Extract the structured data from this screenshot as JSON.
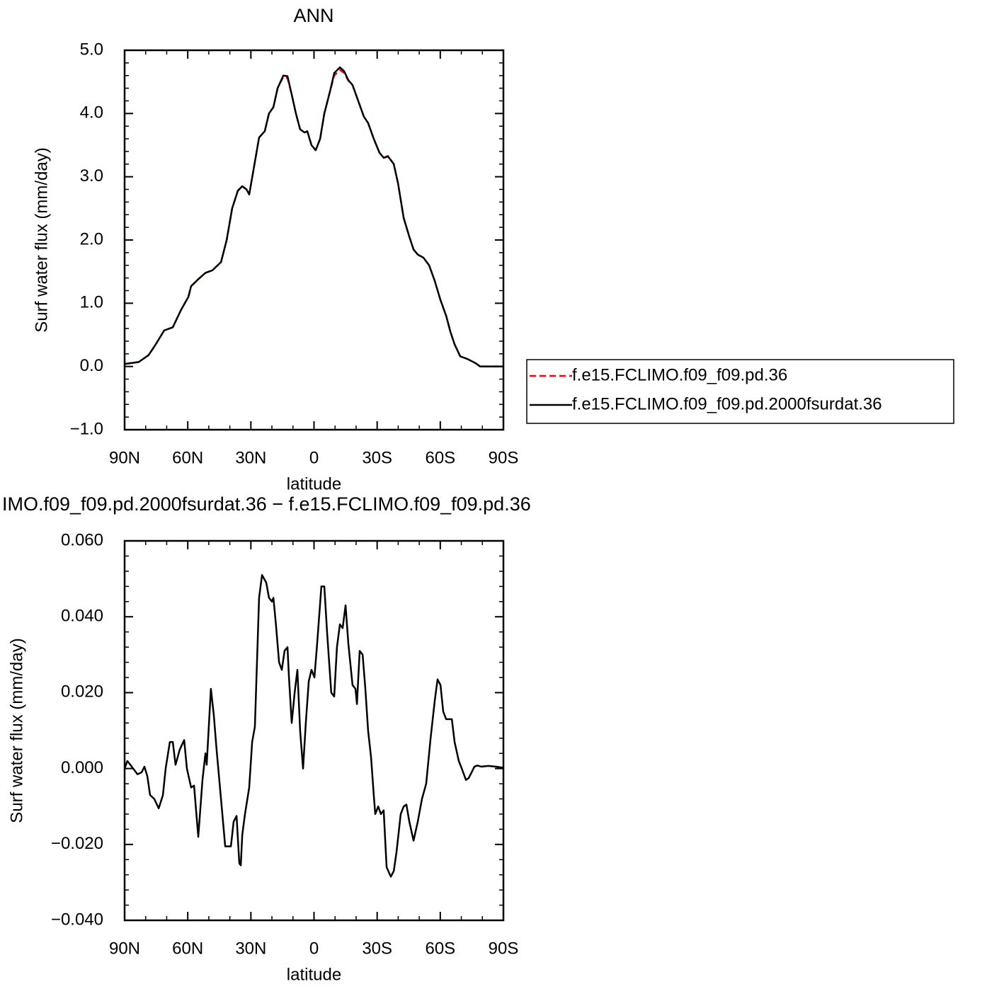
{
  "chart_data": [
    {
      "type": "line",
      "title": "ANN",
      "xlabel": "latitude",
      "ylabel": "Surf water flux (mm/day)",
      "xlim": [
        90,
        -90
      ],
      "xticks": [
        {
          "value": 90,
          "label": "90N"
        },
        {
          "value": 60,
          "label": "60N"
        },
        {
          "value": 30,
          "label": "30N"
        },
        0,
        {
          "value": -30,
          "label": "30S"
        },
        {
          "value": -60,
          "label": "60S"
        },
        {
          "value": -90,
          "label": "90S"
        }
      ],
      "ylim": [
        -1,
        5
      ],
      "yticks": [
        {
          "value": 5,
          "label": "5.0"
        },
        {
          "value": 4,
          "label": "4.0"
        },
        {
          "value": 3,
          "label": "3.0"
        },
        {
          "value": 2,
          "label": "2.0"
        },
        {
          "value": 1,
          "label": "1.0"
        },
        {
          "value": 0,
          "label": "0.0"
        },
        {
          "value": -1,
          "label": "−1.0"
        }
      ],
      "grid": false,
      "legend": "outside right",
      "x": [
        90,
        83.3,
        78.6,
        75.2,
        71.2,
        67.1,
        63.1,
        59.7,
        58.4,
        55.0,
        51.6,
        48.3,
        44.2,
        41.5,
        38.9,
        36.2,
        34.1,
        32.1,
        30.8,
        28.8,
        26.1,
        23.4,
        21.4,
        19.3,
        17.3,
        14.6,
        12.6,
        10.6,
        8.6,
        6.6,
        4.5,
        3.2,
        1.2,
        -0.8,
        -2.9,
        -4.9,
        -7.6,
        -9.6,
        -12.3,
        -14.3,
        -16.3,
        -18.3,
        -21.0,
        -23.7,
        -25.7,
        -28.4,
        -31.1,
        -33.1,
        -35.2,
        -37.9,
        -39.9,
        -42.6,
        -45.3,
        -47.3,
        -49.3,
        -52.0,
        -54.7,
        -57.4,
        -60.1,
        -62.8,
        -64.8,
        -66.8,
        -69.5,
        -72.8,
        -76.9,
        -78.9,
        -82.9,
        -90
      ],
      "series": [
        {
          "name": "f.e15.FCLIMO.f09_f09.pd.36",
          "color": "#ff0000",
          "dash": "dashed",
          "values": [
            0.04,
            0.07,
            0.18,
            0.35,
            0.57,
            0.62,
            0.9,
            1.1,
            1.27,
            1.38,
            1.48,
            1.52,
            1.65,
            2.0,
            2.5,
            2.78,
            2.85,
            2.8,
            2.72,
            3.1,
            3.62,
            3.72,
            4.0,
            4.1,
            4.4,
            4.58,
            4.56,
            4.3,
            4.0,
            3.75,
            3.7,
            3.72,
            3.5,
            3.42,
            3.6,
            4.0,
            4.35,
            4.6,
            4.69,
            4.64,
            4.52,
            4.45,
            4.2,
            3.95,
            3.85,
            3.6,
            3.38,
            3.3,
            3.33,
            3.2,
            2.9,
            2.35,
            2.05,
            1.85,
            1.77,
            1.72,
            1.6,
            1.35,
            1.05,
            0.8,
            0.55,
            0.35,
            0.16,
            0.12,
            0.05,
            0.0,
            0.0,
            0.0
          ]
        },
        {
          "name": "f.e15.FCLIMO.f09_f09.pd.2000fsurdat.36",
          "color": "#000000",
          "dash": "solid",
          "values": [
            0.04,
            0.07,
            0.18,
            0.35,
            0.57,
            0.62,
            0.9,
            1.1,
            1.27,
            1.38,
            1.48,
            1.52,
            1.65,
            2.0,
            2.5,
            2.78,
            2.85,
            2.8,
            2.72,
            3.1,
            3.62,
            3.72,
            4.0,
            4.1,
            4.4,
            4.6,
            4.59,
            4.3,
            4.0,
            3.75,
            3.7,
            3.72,
            3.5,
            3.42,
            3.6,
            4.0,
            4.35,
            4.64,
            4.73,
            4.67,
            4.53,
            4.45,
            4.2,
            3.95,
            3.85,
            3.6,
            3.38,
            3.3,
            3.32,
            3.2,
            2.9,
            2.35,
            2.05,
            1.85,
            1.77,
            1.72,
            1.6,
            1.35,
            1.05,
            0.8,
            0.55,
            0.35,
            0.16,
            0.12,
            0.05,
            0.0,
            0.0,
            0.0
          ]
        }
      ]
    },
    {
      "type": "line",
      "title": "IMO.f09_f09.pd.2000fsurdat.36 − f.e15.FCLIMO.f09_f09.pd.36",
      "xlabel": "latitude",
      "ylabel": "Surf water flux (mm/day)",
      "xlim": [
        90,
        -90
      ],
      "xticks": [
        {
          "value": 90,
          "label": "90N"
        },
        {
          "value": 60,
          "label": "60N"
        },
        {
          "value": 30,
          "label": "30N"
        },
        0,
        {
          "value": -30,
          "label": "30S"
        },
        {
          "value": -60,
          "label": "60S"
        },
        {
          "value": -90,
          "label": "90S"
        }
      ],
      "ylim": [
        -0.04,
        0.06
      ],
      "yticks": [
        {
          "value": 0.06,
          "label": "0.060"
        },
        {
          "value": 0.04,
          "label": "0.040"
        },
        {
          "value": 0.02,
          "label": "0.020"
        },
        {
          "value": 0,
          "label": "0.000"
        },
        {
          "value": -0.02,
          "label": "−0.020"
        },
        {
          "value": -0.04,
          "label": "−0.040"
        }
      ],
      "grid": false,
      "x": [
        90,
        88.7,
        87.3,
        83.9,
        81.9,
        80.6,
        79.2,
        77.9,
        75.9,
        73.8,
        71.8,
        70.5,
        68.5,
        67.1,
        65.8,
        63.8,
        61.7,
        60.4,
        58.4,
        57.0,
        55.0,
        53.0,
        51.6,
        51.0,
        49.0,
        47.6,
        46.3,
        44.2,
        42.2,
        39.5,
        38.2,
        36.8,
        35.5,
        34.8,
        34.1,
        32.8,
        30.8,
        29.4,
        28.1,
        26.1,
        24.7,
        22.7,
        21.4,
        20.0,
        19.3,
        18.1,
        16.6,
        15.3,
        14.0,
        12.6,
        11.9,
        10.6,
        9.2,
        7.9,
        6.6,
        5.2,
        3.9,
        2.5,
        1.2,
        -0.2,
        -1.5,
        -3.5,
        -4.9,
        -6.2,
        -8.2,
        -9.6,
        -10.9,
        -12.3,
        -13.6,
        -15.0,
        -16.3,
        -18.3,
        -19.7,
        -20.4,
        -21.7,
        -23.1,
        -24.4,
        -25.7,
        -27.1,
        -28.4,
        -29.1,
        -30.5,
        -31.8,
        -33.1,
        -34.5,
        -36.5,
        -37.9,
        -39.2,
        -41.2,
        -42.6,
        -43.9,
        -45.3,
        -47.3,
        -49.3,
        -51.3,
        -53.3,
        -55.4,
        -57.4,
        -58.7,
        -60.1,
        -61.4,
        -62.8,
        -65.5,
        -66.8,
        -68.8,
        -70.2,
        -72.2,
        -73.5,
        -74.9,
        -76.2,
        -77.6,
        -79.6,
        -82.9,
        -86.3,
        -90
      ],
      "series": [
        {
          "color": "#000000",
          "dash": "solid",
          "values": [
            0.0,
            0.002,
            0.001,
            -0.0015,
            -0.001,
            0.0005,
            -0.002,
            -0.007,
            -0.008,
            -0.0105,
            -0.007,
            0.0,
            0.007,
            0.007,
            0.001,
            0.005,
            0.0075,
            0.0,
            -0.005,
            -0.0045,
            -0.018,
            -0.003,
            0.004,
            0.001,
            0.021,
            0.014,
            0.005,
            -0.008,
            -0.0205,
            -0.0205,
            -0.014,
            -0.0125,
            -0.025,
            -0.0255,
            -0.0175,
            -0.012,
            -0.005,
            0.007,
            0.011,
            0.045,
            0.051,
            0.049,
            0.045,
            0.044,
            0.045,
            0.038,
            0.028,
            0.026,
            0.031,
            0.032,
            0.024,
            0.012,
            0.02,
            0.026,
            0.01,
            0.0,
            0.012,
            0.023,
            0.026,
            0.024,
            0.033,
            0.048,
            0.048,
            0.036,
            0.02,
            0.019,
            0.032,
            0.038,
            0.037,
            0.043,
            0.033,
            0.022,
            0.021,
            0.017,
            0.031,
            0.03,
            0.021,
            0.01,
            0.003,
            -0.007,
            -0.012,
            -0.01,
            -0.012,
            -0.011,
            -0.026,
            -0.0285,
            -0.027,
            -0.022,
            -0.012,
            -0.01,
            -0.0095,
            -0.014,
            -0.019,
            -0.014,
            -0.008,
            -0.004,
            0.008,
            0.018,
            0.0235,
            0.022,
            0.015,
            0.013,
            0.013,
            0.007,
            0.002,
            0.0,
            -0.003,
            -0.0025,
            -0.001,
            0.0005,
            0.0008,
            0.0005,
            0.0007,
            0.0005,
            0.0002
          ]
        }
      ]
    }
  ]
}
